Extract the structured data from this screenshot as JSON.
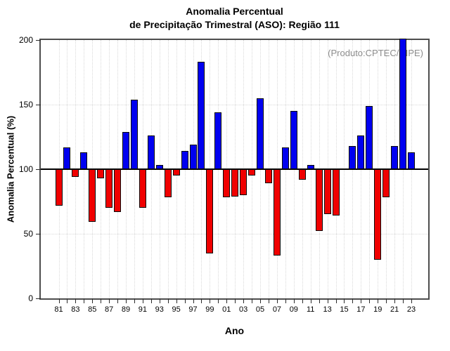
{
  "chart_data": {
    "type": "bar",
    "title_line1": "Anomalia Percentual",
    "title_line2": "de Precipitação Trimestral (ASO): Região 111",
    "xlabel": "Ano",
    "ylabel": "Anomalia Percentual (%)",
    "annotation": "(Produto:CPTEC/INPE)",
    "ylim": [
      0,
      200
    ],
    "yticks": [
      0,
      50,
      100,
      150,
      200
    ],
    "baseline": 100,
    "grid": "dotted",
    "categories": [
      "81",
      "82",
      "83",
      "84",
      "85",
      "86",
      "87",
      "88",
      "89",
      "90",
      "91",
      "92",
      "93",
      "94",
      "95",
      "96",
      "97",
      "98",
      "99",
      "00",
      "01",
      "02",
      "03",
      "04",
      "05",
      "06",
      "07",
      "08",
      "09",
      "10",
      "11",
      "12",
      "13",
      "14",
      "15",
      "16",
      "17",
      "18",
      "19",
      "20",
      "21",
      "22",
      "23"
    ],
    "x_label_every": 2,
    "values": [
      72,
      117,
      94,
      113,
      59,
      93,
      70,
      67,
      129,
      154,
      70,
      126,
      103,
      78,
      95,
      114,
      119,
      183,
      35,
      144,
      78,
      79,
      80,
      95,
      155,
      89,
      33,
      117,
      145,
      92,
      103,
      52,
      65,
      64,
      100,
      118,
      126,
      149,
      30,
      78,
      118,
      201,
      113
    ],
    "colors": {
      "above_baseline": "#0000f0",
      "below_baseline": "#f00000",
      "bar_border": "#0a0a0a",
      "baseline_line": "#000000",
      "frame": "#4d4d4d",
      "grid": "#d9d9d9",
      "annotation_text": "#8c8c8c"
    }
  }
}
